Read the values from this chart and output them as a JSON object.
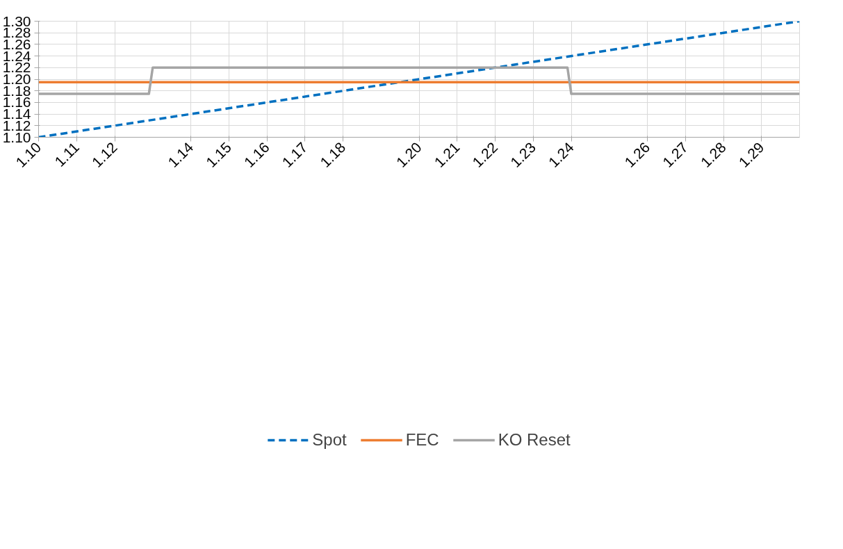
{
  "chart_data": {
    "type": "line",
    "xlim": [
      1.1,
      1.3
    ],
    "ylim": [
      1.1,
      1.3
    ],
    "xticks": [
      {
        "value": 1.1,
        "label": "1.10"
      },
      1.11,
      1.12,
      1.14,
      1.15,
      1.16,
      1.17,
      1.18,
      {
        "value": 1.2,
        "label": "1.20"
      },
      1.21,
      1.22,
      1.23,
      1.24,
      1.26,
      1.27,
      1.28,
      1.29
    ],
    "yticks": [
      {
        "value": 1.1,
        "label": "1.10"
      },
      1.12,
      1.14,
      1.16,
      1.18,
      {
        "value": 1.2,
        "label": "1.20"
      },
      1.22,
      1.24,
      1.26,
      1.28,
      {
        "value": 1.3,
        "label": "1.30"
      }
    ],
    "series": [
      {
        "name": "Spot",
        "color": "#0070c0",
        "x": [
          1.1,
          1.3
        ],
        "values": [
          1.1,
          1.3
        ],
        "line_style": "dashed"
      },
      {
        "name": "FEC",
        "color": "#ed7d31",
        "x": [
          1.1,
          1.3
        ],
        "values": [
          1.195,
          1.195
        ],
        "line_style": "solid"
      },
      {
        "name": "KO Reset",
        "color": "#a5a5a5",
        "x": [
          1.1,
          1.129,
          1.13,
          1.239,
          1.24,
          1.3
        ],
        "values": [
          1.175,
          1.175,
          1.22,
          1.22,
          1.175,
          1.175
        ],
        "line_style": "solid"
      }
    ],
    "grid": true,
    "legend": "bottom",
    "marker": "none"
  }
}
